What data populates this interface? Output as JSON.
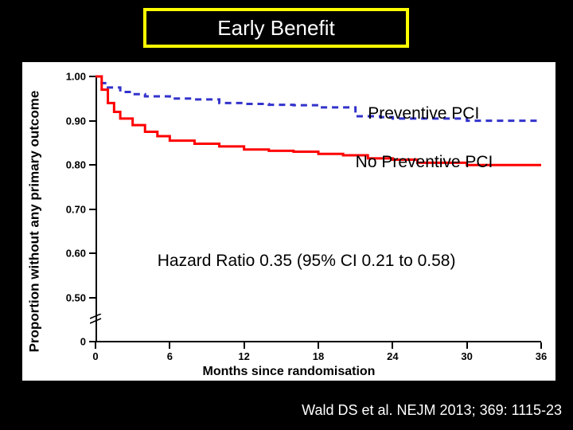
{
  "title": "Early Benefit",
  "citation": "Wald DS et al. NEJM 2013; 369: 1115-23",
  "chart": {
    "type": "line",
    "background_color": "#ffffff",
    "slide_background": "#000000",
    "title_border": "#ffff00",
    "ylabel": "Proportion without any primary outcome",
    "xlabel": "Months since randomisation",
    "label_fontsize": 16,
    "tick_fontsize": 13,
    "ylim_display": [
      0.5,
      1.0
    ],
    "ytick_step": 0.1,
    "yticks": [
      "1.00",
      "0.90",
      "0.80",
      "0.70",
      "0.60",
      "0.50",
      "0"
    ],
    "has_axis_break": true,
    "xlim": [
      0,
      36
    ],
    "xtick_step": 6,
    "xticks": [
      0,
      6,
      12,
      18,
      24,
      30,
      36
    ],
    "series": [
      {
        "name": "Preventive PCI",
        "color": "#3333cc",
        "dash": "8 6",
        "width": 3,
        "x": [
          0,
          0.5,
          1,
          2,
          3,
          4,
          6,
          8,
          10,
          12,
          14,
          16,
          18,
          20,
          21,
          23,
          24,
          27,
          30,
          33,
          36
        ],
        "y": [
          1.0,
          0.985,
          0.975,
          0.965,
          0.96,
          0.955,
          0.95,
          0.948,
          0.94,
          0.938,
          0.936,
          0.935,
          0.93,
          0.93,
          0.91,
          0.908,
          0.905,
          0.905,
          0.9,
          0.9,
          0.9
        ]
      },
      {
        "name": "No Preventive PCI",
        "color": "#ff0000",
        "dash": "none",
        "width": 3,
        "x": [
          0,
          0.5,
          1,
          1.5,
          2,
          3,
          4,
          5,
          6,
          8,
          10,
          12,
          14,
          16,
          18,
          20,
          22,
          24,
          26,
          28,
          30,
          33,
          36
        ],
        "y": [
          1.0,
          0.97,
          0.94,
          0.92,
          0.905,
          0.89,
          0.875,
          0.865,
          0.855,
          0.848,
          0.842,
          0.835,
          0.832,
          0.83,
          0.825,
          0.822,
          0.815,
          0.812,
          0.805,
          0.805,
          0.8,
          0.8,
          0.8
        ]
      }
    ],
    "annotations": {
      "preventive_label": "Preventive PCI",
      "no_preventive_label": "No Preventive PCI",
      "hazard_ratio": "Hazard Ratio 0.35 (95% CI 0.21 to 0.58)"
    },
    "anno_fontsize": 21
  }
}
